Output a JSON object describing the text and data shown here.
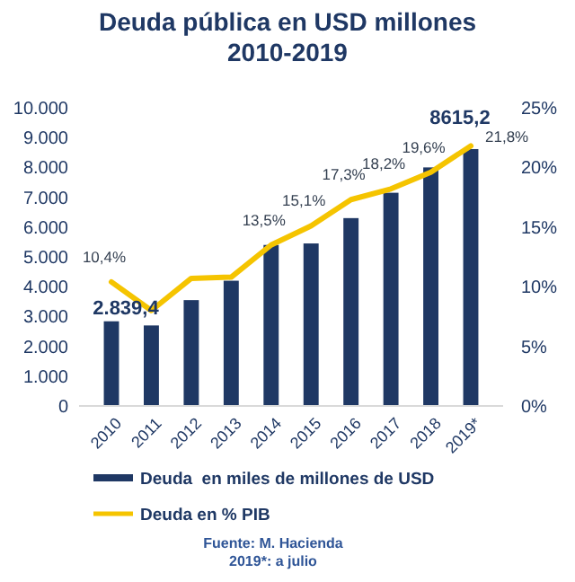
{
  "chart_data": {
    "type": "bar",
    "title": "Deuda pública en USD millones\n2010-2019",
    "categories": [
      "2010",
      "2011",
      "2012",
      "2013",
      "2014",
      "2015",
      "2016",
      "2017",
      "2018",
      "2019*"
    ],
    "series": [
      {
        "name": "Deuda  en miles de millones de USD",
        "color": "#1f3864",
        "values": [
          2839.4,
          2700,
          3550,
          4200,
          5400,
          5450,
          6300,
          7150,
          8000,
          8615.2
        ],
        "value_labels": [
          "2.839,4",
          null,
          null,
          null,
          null,
          null,
          null,
          null,
          null,
          "8615,2"
        ]
      },
      {
        "name": "Deuda en % PIB",
        "type": "line",
        "axis": "y2",
        "color": "#f5c400",
        "values": [
          10.4,
          8.0,
          10.7,
          10.8,
          13.5,
          15.1,
          17.3,
          18.2,
          19.6,
          21.8
        ],
        "value_labels": [
          "10,4%",
          null,
          null,
          null,
          "13,5%",
          "15,1%",
          "17,3%",
          "18,2%",
          "19,6%",
          "21,8%"
        ]
      }
    ],
    "ylim": [
      0,
      10000
    ],
    "yticks": [
      {
        "value": 0,
        "label": "0"
      },
      {
        "value": 1000,
        "label": "1.000"
      },
      {
        "value": 2000,
        "label": "2.000"
      },
      {
        "value": 3000,
        "label": "3.000"
      },
      {
        "value": 4000,
        "label": "4.000"
      },
      {
        "value": 5000,
        "label": "5.000"
      },
      {
        "value": 6000,
        "label": "6.000"
      },
      {
        "value": 7000,
        "label": "7.000"
      },
      {
        "value": 8000,
        "label": "8.000"
      },
      {
        "value": 9000,
        "label": "9.000"
      },
      {
        "value": 10000,
        "label": "10.000"
      }
    ],
    "y2lim": [
      0,
      25
    ],
    "y2ticks": [
      {
        "value": 0,
        "label": "0%"
      },
      {
        "value": 5,
        "label": "5%"
      },
      {
        "value": 10,
        "label": "10%"
      },
      {
        "value": 15,
        "label": "15%"
      },
      {
        "value": 20,
        "label": "20%"
      },
      {
        "value": 25,
        "label": "25%"
      }
    ],
    "legend": "bottom",
    "grid": false,
    "annotations": [
      "Fuente: M. Hacienda",
      "2019*: a julio"
    ]
  }
}
